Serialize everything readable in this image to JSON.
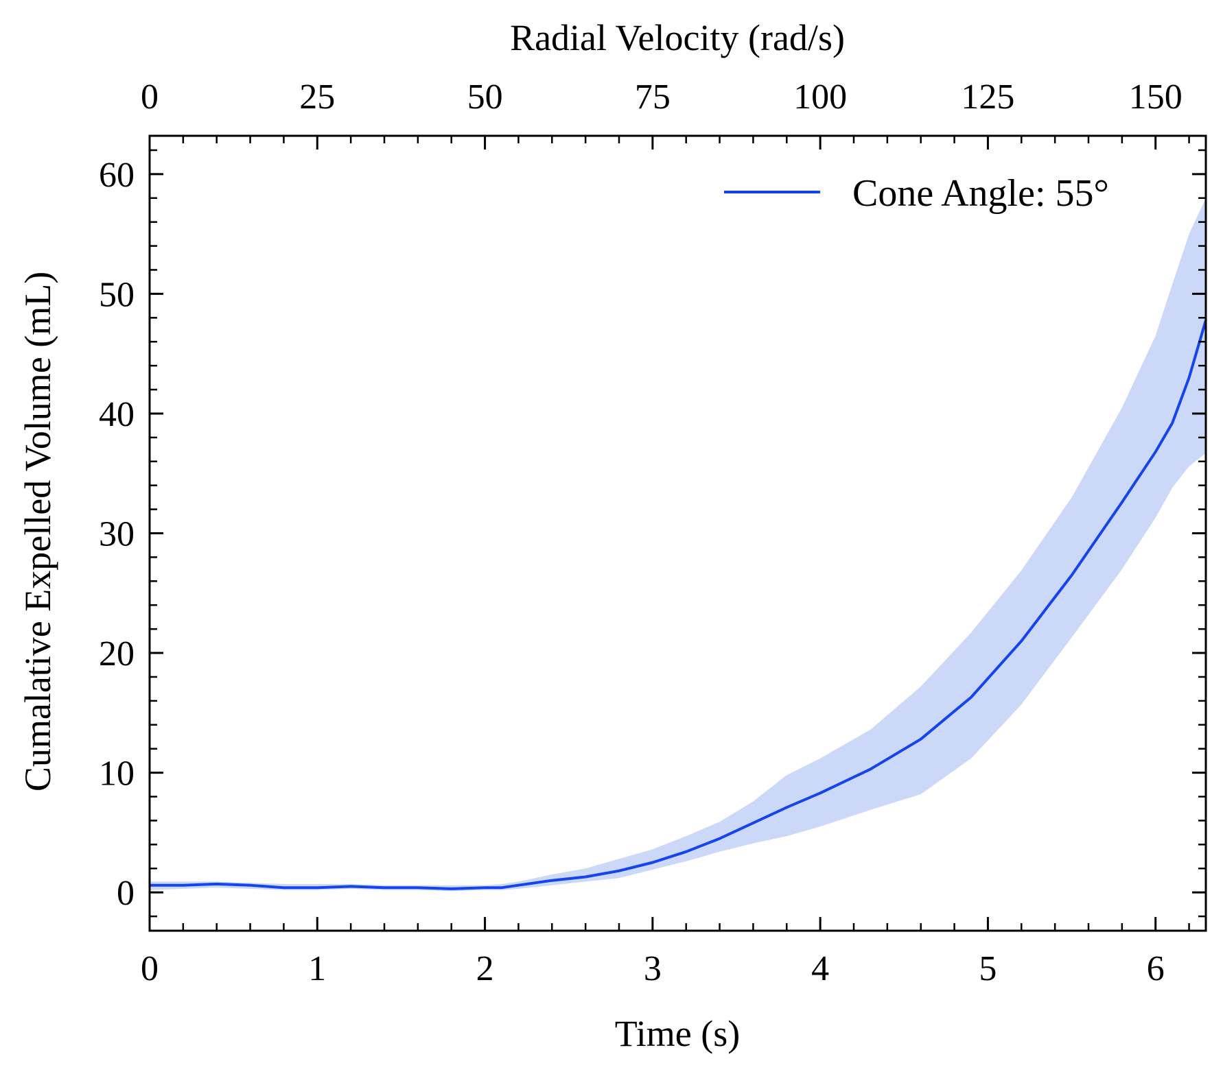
{
  "colors": {
    "line": "#1444ee",
    "band": "#ccd8f8",
    "axis": "#000000",
    "background": "#ffffff"
  },
  "chart_data": {
    "type": "line",
    "xlabel": "Time (s)",
    "ylabel": "Cumalative Expelled Volume (mL)",
    "top_xlabel": "Radial Velocity (rad/s)",
    "xlim": [
      0,
      6.3
    ],
    "ylim": [
      -3.2,
      63.2
    ],
    "top_xlim": [
      0,
      157.5
    ],
    "x_ticks": [
      0,
      1,
      2,
      3,
      4,
      5,
      6
    ],
    "x_tick_labels": [
      "0",
      "1",
      "2",
      "3",
      "4",
      "5",
      "6"
    ],
    "y_ticks": [
      0,
      10,
      20,
      30,
      40,
      50,
      60
    ],
    "y_tick_labels": [
      "0",
      "10",
      "20",
      "30",
      "40",
      "50",
      "60"
    ],
    "top_x_ticks": [
      0,
      25,
      50,
      75,
      100,
      125,
      150
    ],
    "top_x_tick_labels": [
      "0",
      "25",
      "50",
      "75",
      "100",
      "125",
      "150"
    ],
    "grid": false,
    "legend_position": "top-right",
    "series": [
      {
        "name": "Cone Angle: 55°",
        "x": [
          0,
          0.2,
          0.4,
          0.6,
          0.8,
          1.0,
          1.2,
          1.4,
          1.6,
          1.8,
          2.0,
          2.1,
          2.2,
          2.4,
          2.6,
          2.8,
          3.0,
          3.2,
          3.4,
          3.6,
          3.8,
          4.0,
          4.3,
          4.6,
          4.9,
          5.2,
          5.5,
          5.8,
          6.0,
          6.1,
          6.2,
          6.3
        ],
        "y": [
          0.6,
          0.6,
          0.7,
          0.6,
          0.4,
          0.4,
          0.5,
          0.4,
          0.4,
          0.3,
          0.4,
          0.4,
          0.6,
          1.0,
          1.3,
          1.8,
          2.5,
          3.4,
          4.5,
          5.8,
          7.1,
          8.3,
          10.3,
          12.8,
          16.3,
          21.0,
          26.5,
          32.6,
          36.8,
          39.2,
          43.0,
          47.8
        ],
        "upper": [
          0.9,
          0.9,
          0.9,
          0.8,
          0.7,
          0.7,
          0.7,
          0.6,
          0.6,
          0.6,
          0.6,
          0.7,
          0.9,
          1.5,
          2.0,
          2.8,
          3.6,
          4.7,
          5.9,
          7.6,
          9.8,
          11.2,
          13.6,
          17.2,
          21.7,
          26.9,
          33.0,
          40.5,
          46.5,
          50.8,
          55.0,
          58.0
        ],
        "lower": [
          0.2,
          0.3,
          0.4,
          0.3,
          0.2,
          0.2,
          0.3,
          0.2,
          0.2,
          0.1,
          0.2,
          0.2,
          0.3,
          0.6,
          0.9,
          1.2,
          1.9,
          2.6,
          3.4,
          4.1,
          4.7,
          5.5,
          6.9,
          8.2,
          11.2,
          15.7,
          21.3,
          27.0,
          31.3,
          33.8,
          35.6,
          36.7
        ]
      }
    ]
  }
}
